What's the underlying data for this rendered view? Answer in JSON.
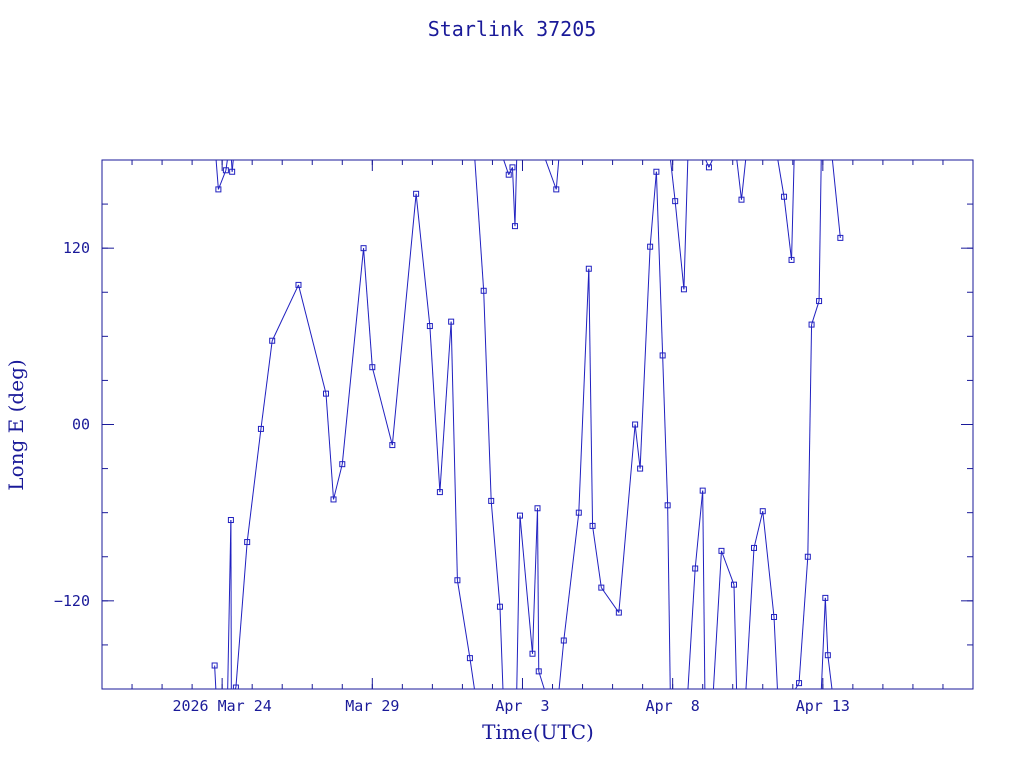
{
  "chart_data": {
    "type": "line",
    "title": "Starlink 37205",
    "xlabel": "Time(UTC)",
    "ylabel": "Long E (deg)",
    "xlim": [
      "2026-03-20T00:00",
      "2026-04-18T00:00"
    ],
    "ylim": [
      -180,
      180
    ],
    "grid": false,
    "legend": "none",
    "x_ticks": [
      {
        "label": "2026 Mar 24",
        "x": "2026-03-24"
      },
      {
        "label": "Mar 29",
        "x": "2026-03-29"
      },
      {
        "label": "Apr  3",
        "x": "2026-04-03"
      },
      {
        "label": "Apr  8",
        "x": "2026-04-08"
      },
      {
        "label": "Apr 13",
        "x": "2026-04-13"
      }
    ],
    "y_ticks": [
      {
        "label": "120",
        "y": 120
      },
      {
        "label": "00",
        "y": 0
      },
      {
        "label": "−120",
        "y": -120
      }
    ],
    "colors": {
      "line": "#2020c0",
      "axes": "#1a1a99",
      "text": "#1a1a99"
    },
    "series": [
      {
        "x": [
          "2026-03-23T18:00",
          "2026-03-23T21:00",
          "2026-03-24T03:00",
          "2026-03-24T07:00",
          "2026-03-24T08:00",
          "2026-03-24T11:00",
          "2026-03-24T20:00",
          "2026-03-25T07:00",
          "2026-03-25T16:00",
          "2026-03-26T13:00",
          "2026-03-27T11:00",
          "2026-03-27T17:00",
          "2026-03-28T00:00",
          "2026-03-28T17:00",
          "2026-03-29T00:00",
          "2026-03-29T16:00",
          "2026-03-30T11:00",
          "2026-03-30T22:00",
          "2026-03-31T06:00",
          "2026-03-31T15:00",
          "2026-03-31T20:00",
          "2026-04-01T06:00",
          "2026-04-01T17:00",
          "2026-04-01T23:00",
          "2026-04-02T06:00",
          "2026-04-02T13:00",
          "2026-04-02T16:00",
          "2026-04-02T18:00",
          "2026-04-02T22:00",
          "2026-04-03T08:00",
          "2026-04-03T12:00",
          "2026-04-03T13:00",
          "2026-04-04T03:00",
          "2026-04-04T09:00",
          "2026-04-04T21:00",
          "2026-04-05T05:00",
          "2026-04-05T08:00",
          "2026-04-05T15:00",
          "2026-04-06T05:00",
          "2026-04-06T18:00",
          "2026-04-06T22:00",
          "2026-04-07T06:00",
          "2026-04-07T11:00",
          "2026-04-07T16:00",
          "2026-04-07T20:00",
          "2026-04-08T02:00",
          "2026-04-08T09:00",
          "2026-04-08T18:00",
          "2026-04-09T00:00",
          "2026-04-09T05:00",
          "2026-04-09T15:00",
          "2026-04-10T01:00",
          "2026-04-10T07:00",
          "2026-04-10T17:00",
          "2026-04-11T00:00",
          "2026-04-11T09:00",
          "2026-04-11T17:00",
          "2026-04-11T23:00",
          "2026-04-12T05:00",
          "2026-04-12T12:00",
          "2026-04-12T15:00",
          "2026-04-12T21:00",
          "2026-04-13T02:00",
          "2026-04-13T04:00",
          "2026-04-13T14:00"
        ],
        "y": [
          -164,
          160,
          173,
          -65,
          172,
          -179,
          -80,
          -3,
          57,
          95,
          21,
          -51,
          -27,
          120,
          39,
          -14,
          157,
          67,
          -46,
          70,
          -106,
          -159,
          91,
          -52,
          -124,
          170,
          175,
          135,
          -62,
          -156,
          -57,
          -168,
          160,
          -147,
          -60,
          106,
          -69,
          -111,
          -128,
          0,
          -30,
          121,
          172,
          47,
          -55,
          152,
          92,
          -98,
          -45,
          175,
          -86,
          -109,
          153,
          -84,
          -59,
          -131,
          155,
          112,
          -176,
          -90,
          68,
          84,
          -118,
          -157,
          127
        ]
      }
    ]
  }
}
